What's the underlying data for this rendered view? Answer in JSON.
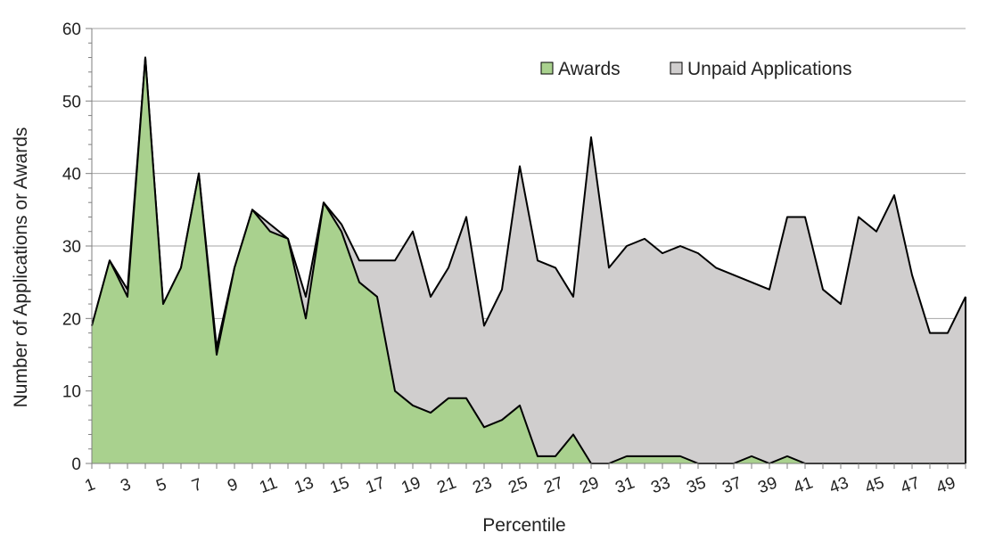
{
  "chart_data": {
    "type": "area",
    "x": [
      1,
      2,
      3,
      4,
      5,
      6,
      7,
      8,
      9,
      10,
      11,
      12,
      13,
      14,
      15,
      16,
      17,
      18,
      19,
      20,
      21,
      22,
      23,
      24,
      25,
      26,
      27,
      28,
      29,
      30,
      31,
      32,
      33,
      34,
      35,
      36,
      37,
      38,
      39,
      40,
      41,
      42,
      43,
      44,
      45,
      46,
      47,
      48,
      49,
      50
    ],
    "x_tick_labels": [
      "1",
      "3",
      "5",
      "7",
      "9",
      "11",
      "13",
      "15",
      "17",
      "19",
      "21",
      "23",
      "25",
      "27",
      "29",
      "31",
      "33",
      "35",
      "37",
      "39",
      "41",
      "43",
      "45",
      "47",
      "49"
    ],
    "series": [
      {
        "name": "Awards",
        "color": "#a9d18e",
        "values": [
          19,
          28,
          23,
          56,
          22,
          27,
          40,
          15,
          27,
          35,
          32,
          31,
          20,
          36,
          32,
          25,
          23,
          10,
          8,
          7,
          9,
          9,
          5,
          6,
          8,
          1,
          1,
          4,
          0,
          0,
          1,
          1,
          1,
          1,
          0,
          0,
          0,
          1,
          0,
          1,
          0,
          0,
          0,
          0,
          0,
          0,
          0,
          0,
          0,
          0
        ]
      },
      {
        "name": "Unpaid Applications",
        "color": "#d0cece",
        "values": [
          19,
          28,
          24,
          56,
          22,
          27,
          40,
          16,
          27,
          35,
          33,
          31,
          23,
          36,
          33,
          28,
          28,
          28,
          32,
          23,
          27,
          34,
          19,
          24,
          41,
          28,
          27,
          23,
          45,
          27,
          30,
          31,
          29,
          30,
          29,
          27,
          26,
          25,
          24,
          34,
          34,
          24,
          22,
          34,
          32,
          37,
          26,
          18,
          18,
          23
        ]
      }
    ],
    "xlabel": "Percentile",
    "ylabel": "Number of Applications or Awards",
    "ylim": [
      0,
      60
    ],
    "y_ticks": [
      0,
      10,
      20,
      30,
      40,
      50,
      60
    ],
    "grid": true,
    "legend_position": "top-right"
  }
}
